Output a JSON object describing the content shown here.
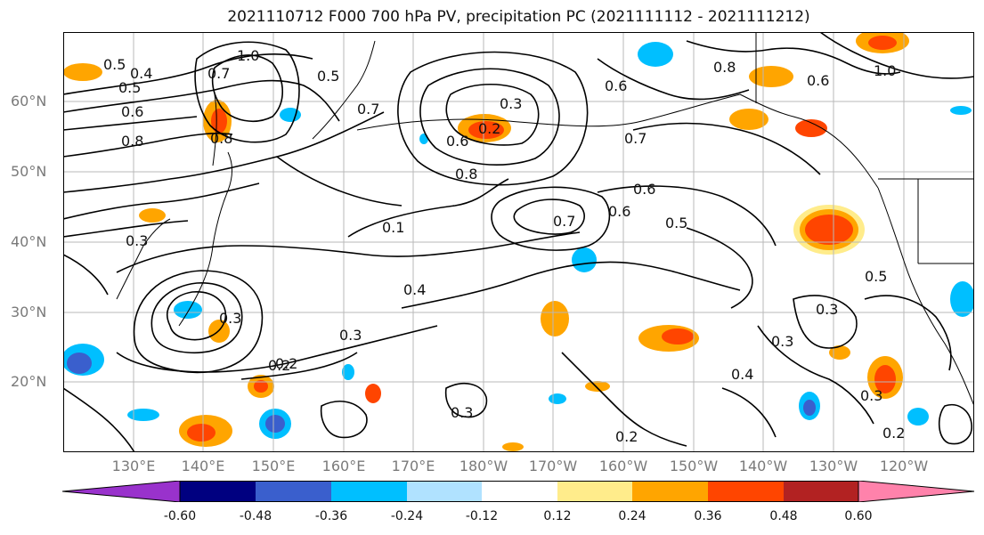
{
  "title": "2021110712 F000 700 hPa PV, precipitation PC (2021111112 - 2021111212)",
  "lat_labels": [
    "60°N",
    "50°N",
    "40°N",
    "30°N",
    "20°N"
  ],
  "lon_labels": [
    "130°E",
    "140°E",
    "150°E",
    "160°E",
    "170°E",
    "180°W",
    "170°W",
    "160°W",
    "150°W",
    "140°W",
    "130°W",
    "120°W"
  ],
  "contour_labels": [
    "0.5",
    "0.4",
    "0.5",
    "0.6",
    "0.8",
    "1.0",
    "0.7",
    "0.5",
    "0.7",
    "0.3",
    "0.2",
    "0.6",
    "0.6",
    "0.8",
    "1.0",
    "0.6",
    "0.8",
    "0.3",
    "0.6",
    "0.5",
    "0.6",
    "0.7",
    "0.1",
    "0.3",
    "0.4",
    "0.3",
    "0.2",
    "0.3",
    "0.2",
    "0.2",
    "0.4",
    "0.3",
    "0.5",
    "0.3",
    "0.3",
    "0.2",
    "0.8",
    "0.7"
  ],
  "colorbar": {
    "ticks": [
      "-0.60",
      "-0.48",
      "-0.36",
      "-0.24",
      "-0.12",
      "0.12",
      "0.24",
      "0.36",
      "0.48",
      "0.60"
    ],
    "colors": [
      "#9932cc",
      "#000080",
      "#3a5fcd",
      "#00bfff",
      "#b0e2ff",
      "#ffffff",
      "#ffec8b",
      "#ffa500",
      "#ff4500",
      "#b22222",
      "#ff82ab"
    ]
  }
}
